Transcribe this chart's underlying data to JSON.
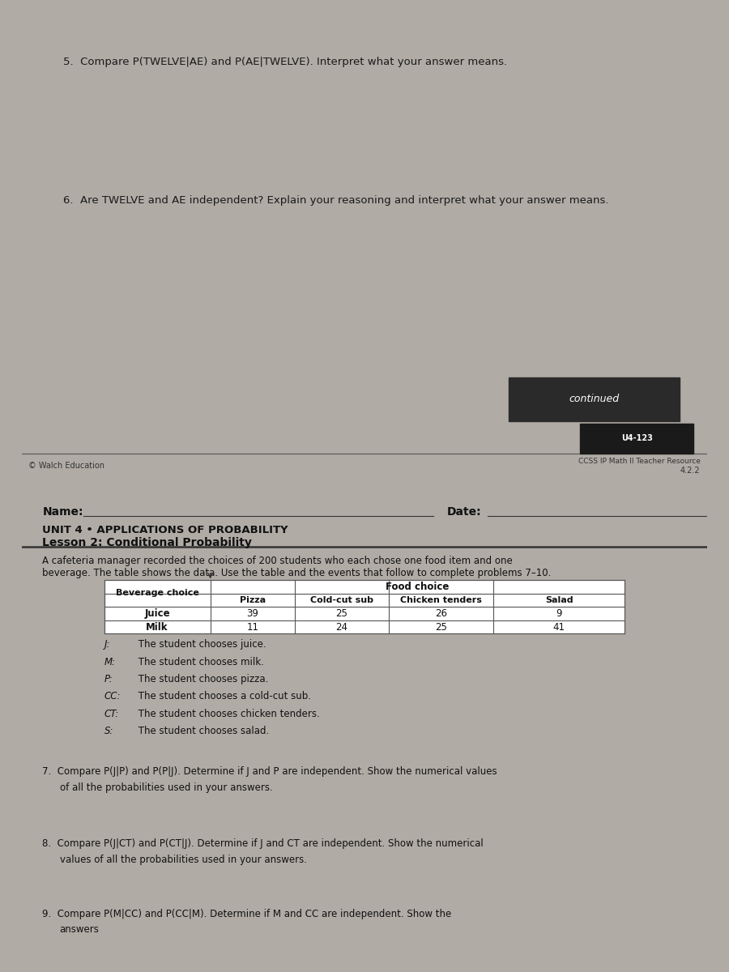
{
  "bg_color_gap": "#b0aba5",
  "page1_bg": "#cdc9c4",
  "page2_bg": "#e8e4df",
  "text_color": "#1a1a1a",
  "q5_text": "5.  Compare P(TWELVE|AE) and P(AE|TWELVE). Interpret what your answer means.",
  "q6_text": "6.  Are TWELVE and AE independent? Explain your reasoning and interpret what your answer means.",
  "continued_text": "continued",
  "copyright_text": "© Walch Education",
  "page_ref": "U4-123",
  "resource_text": "CCSS IP Math II Teacher Resource",
  "page_num": "4.2.2",
  "name_label": "Name:",
  "date_label": "Date:",
  "unit_title": "UNIT 4 • APPLICATIONS OF PROBABILITY",
  "lesson_title": "Lesson 2: Conditional Probability",
  "intro_line1": "A cafeteria manager recorded the choices of 200 students who each chose one food item and one",
  "intro_line2": "beverage. The table shows the data. Use the table and the events that follow to complete problems 7–10.",
  "table_data": [
    [
      "Juice",
      "39",
      "25",
      "26",
      "9"
    ],
    [
      "Milk",
      "11",
      "24",
      "25",
      "41"
    ]
  ],
  "events": [
    [
      "J",
      "The student chooses juice."
    ],
    [
      "M",
      "The student chooses milk."
    ],
    [
      "P",
      "The student chooses pizza."
    ],
    [
      "CC",
      "The student chooses a cold-cut sub."
    ],
    [
      "CT",
      "The student chooses chicken tenders."
    ],
    [
      "S",
      "The student chooses salad."
    ]
  ],
  "q7_line1": "7.  Compare P(J|P) and P(P|J). Determine if J and P are independent. Show the numerical values",
  "q7_line2": "    of all the probabilities used in your answers.",
  "q8_line1": "8.  Compare P(J|CT) and P(CT|J). Determine if J and CT are independent. Show the numerical",
  "q8_line2": "    values of all the probabilities used in your answers.",
  "q9_line1": "9.  Compare P(M|CC) and P(CC|M). Determine if M and CC are independent. Show the",
  "q9_line2": "    answers"
}
